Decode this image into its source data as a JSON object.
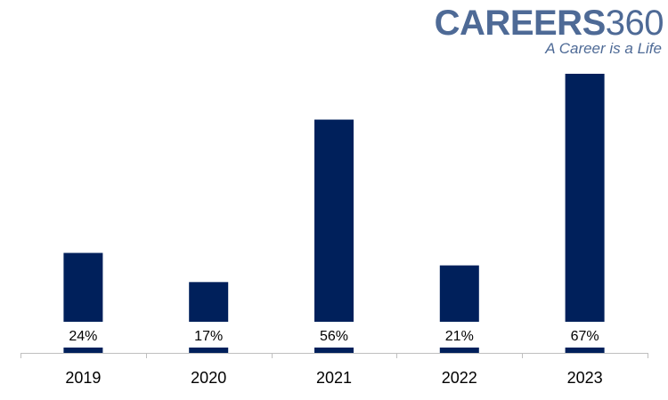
{
  "logo": {
    "word": "CAREERS",
    "number": "360",
    "tagline": "A Career is a Life",
    "color": "#4e6a96"
  },
  "chart_data": {
    "type": "bar",
    "categories": [
      "2019",
      "2020",
      "2021",
      "2022",
      "2023"
    ],
    "values": [
      24,
      17,
      56,
      21,
      67
    ],
    "value_labels": [
      "24%",
      "17%",
      "56%",
      "21%",
      "67%"
    ],
    "unit": "%",
    "ylim": [
      0,
      67
    ],
    "grid": false,
    "legend": "none",
    "bar_color": "#00205b",
    "axis_color": "#bfbfbf"
  }
}
